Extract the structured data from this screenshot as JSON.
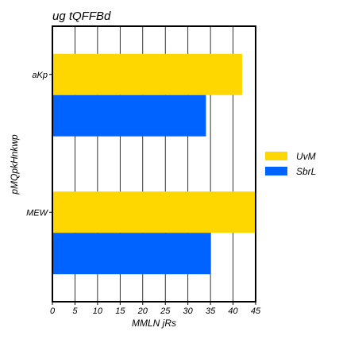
{
  "chart_data": {
    "type": "bar",
    "orientation": "horizontal",
    "title": "ug tQFFBd",
    "xlabel": "MMLN jRs",
    "ylabel": "pMQpkHnkwp",
    "categories": [
      "aKp",
      "MEW"
    ],
    "series": [
      {
        "name": "UvM",
        "values": [
          42,
          46
        ],
        "color": "#FFD700"
      },
      {
        "name": "SbrL",
        "values": [
          34,
          35
        ],
        "color": "#0062FF"
      }
    ],
    "xlim": [
      0,
      45
    ],
    "xticks": [
      0,
      5,
      10,
      15,
      20,
      25,
      30,
      35,
      40,
      45
    ],
    "grid": "vertical",
    "legend_position": "right"
  }
}
